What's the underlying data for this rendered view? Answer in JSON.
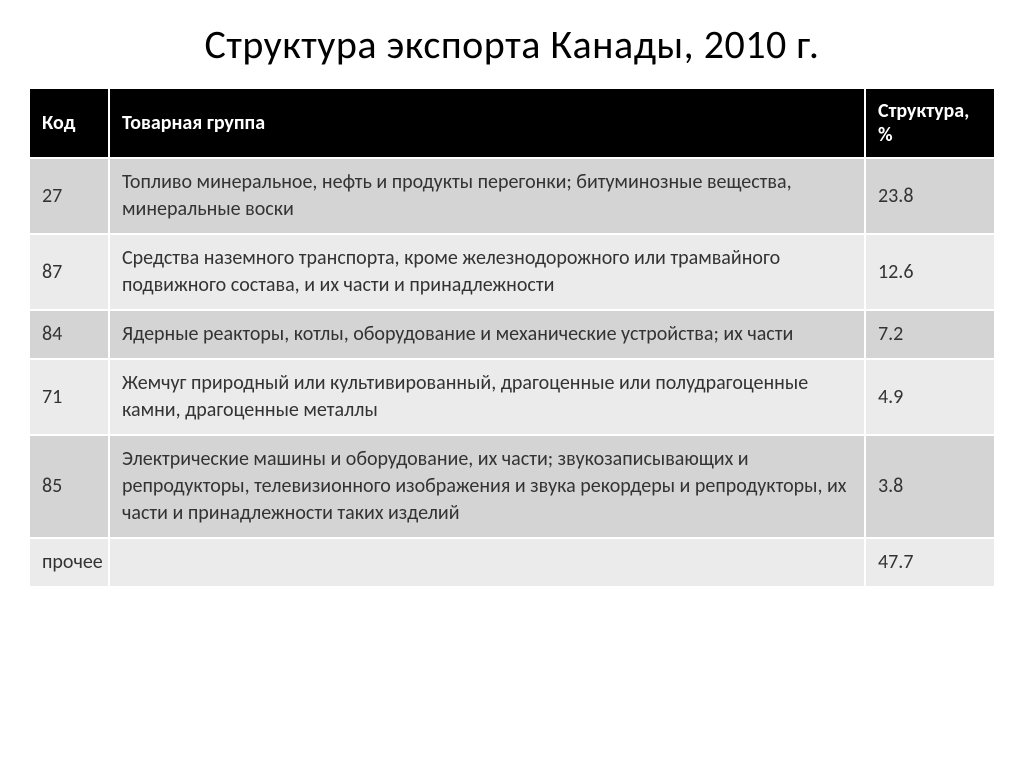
{
  "title": "Структура экспорта Канады, 2010 г.",
  "table": {
    "headers": {
      "code": "Код",
      "group": "Товарная группа",
      "structure": "Структура, %"
    },
    "rows": [
      {
        "code": "27",
        "group": "Топливо минеральное, нефть и продукты перегонки; битуминозные вещества, минеральные воски",
        "structure": "23.8",
        "shade": "dark"
      },
      {
        "code": "87",
        "group": "Средства наземного транспорта, кроме железнодорожного или трамвайного подвижного состава, и их части и принадлежности",
        "structure": "12.6",
        "shade": "light"
      },
      {
        "code": "84",
        "group": "Ядерные реакторы, котлы, оборудование и механические устройства; их части",
        "structure": "7.2",
        "shade": "dark"
      },
      {
        "code": "71",
        "group": "Жемчуг природный или культивированный, драгоценные или полудрагоценные камни, драгоценные металлы",
        "structure": "4.9",
        "shade": "light"
      },
      {
        "code": "85",
        "group": "Электрические машины и оборудование, их части; звукозаписывающих и репродукторы, телевизионного изображения и звука рекордеры и репродукторы, их части и принадлежности таких изделий",
        "structure": "3.8",
        "shade": "dark"
      },
      {
        "code": "прочее",
        "group": "",
        "structure": "47.7",
        "shade": "light"
      }
    ]
  },
  "styling": {
    "title_fontsize": 40,
    "header_bg": "#000000",
    "header_color": "#ffffff",
    "row_dark_bg": "#d4d4d4",
    "row_light_bg": "#ebebeb",
    "cell_border": "#ffffff",
    "cell_fontsize": 20,
    "text_color": "#333333"
  }
}
